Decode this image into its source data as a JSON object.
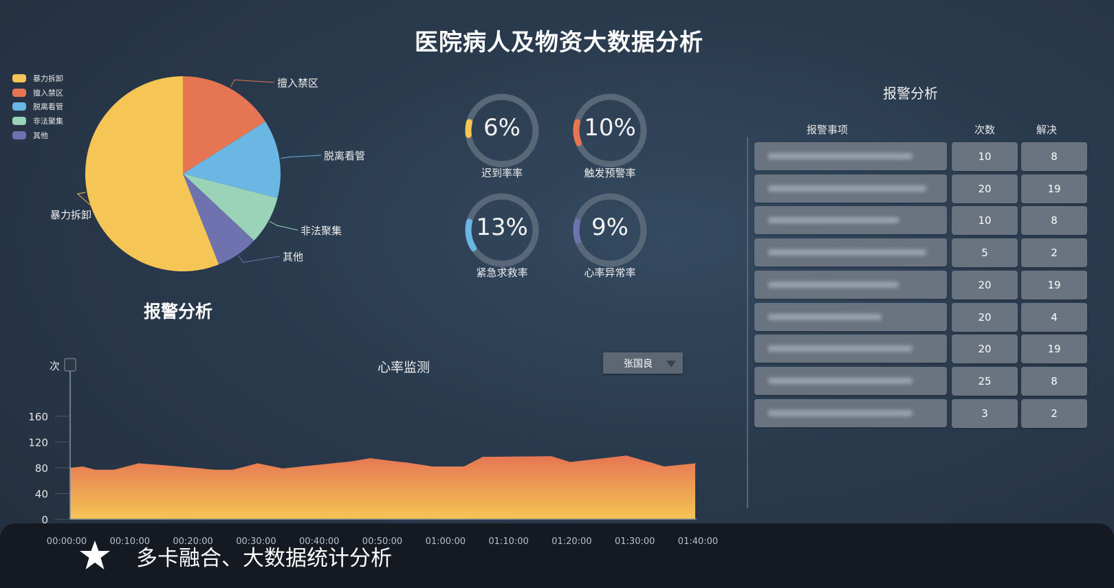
{
  "title": "医院病人及物资大数据分析",
  "pie": {
    "title": "报警分析",
    "legend": [
      "暴力拆卸",
      "擅入禁区",
      "脱离看管",
      "非法聚集",
      "其他"
    ],
    "slices": [
      {
        "name": "暴力拆卸",
        "value": 56,
        "color": "#f5c555"
      },
      {
        "name": "擅入禁区",
        "value": 16,
        "color": "#e57553"
      },
      {
        "name": "脱离看管",
        "value": 13,
        "color": "#6ab7e3"
      },
      {
        "name": "非法聚集",
        "value": 8,
        "color": "#9bd3b8"
      },
      {
        "name": "其他",
        "value": 7,
        "color": "#6e73b0"
      }
    ]
  },
  "gauges": [
    {
      "value": "6%",
      "percent": 6,
      "label": "迟到率率",
      "color": "#f5c555"
    },
    {
      "value": "10%",
      "percent": 10,
      "label": "触发预警率",
      "color": "#e57553"
    },
    {
      "value": "13%",
      "percent": 13,
      "label": "紧急求救率",
      "color": "#6ab7e3"
    },
    {
      "value": "9%",
      "percent": 9,
      "label": "心率异常率",
      "color": "#6e73b0"
    }
  ],
  "alarm_table": {
    "title": "报警分析",
    "headers": [
      "报警事项",
      "次数",
      "解决"
    ],
    "rows": [
      {
        "count": "10",
        "solved": "8"
      },
      {
        "count": "20",
        "solved": "19"
      },
      {
        "count": "10",
        "solved": "8"
      },
      {
        "count": "5",
        "solved": "2"
      },
      {
        "count": "20",
        "solved": "19"
      },
      {
        "count": "20",
        "solved": "4"
      },
      {
        "count": "20",
        "solved": "19"
      },
      {
        "count": "25",
        "solved": "8"
      },
      {
        "count": "3",
        "solved": "2"
      }
    ]
  },
  "heart_rate": {
    "title": "心率监测",
    "selected_person": "张国良",
    "chart_data": {
      "type": "area",
      "ylabel": "次",
      "yticks": [
        0,
        40,
        80,
        120,
        160
      ],
      "ylim": [
        0,
        200
      ],
      "xticks": [
        "00:00:00",
        "00:10:00",
        "00:20:00",
        "00:30:00",
        "00:40:00",
        "00:50:00",
        "01:00:00",
        "01:10:00",
        "01:20:00",
        "01:30:00",
        "01:40:00"
      ],
      "x": [
        "00:00:00",
        "00:02:00",
        "00:04:00",
        "00:07:00",
        "00:11:00",
        "00:15:00",
        "00:21:00",
        "00:23:00",
        "00:26:00",
        "00:30:00",
        "00:34:00",
        "00:38:00",
        "00:43:00",
        "00:45:00",
        "00:48:00",
        "00:52:00",
        "00:54:00",
        "00:58:00",
        "01:03:00",
        "01:06:00",
        "01:17:00",
        "01:20:00",
        "01:29:00",
        "01:33:00",
        "01:35:00",
        "01:40:00"
      ],
      "y": [
        80,
        82,
        77,
        77,
        87,
        84,
        79,
        77,
        77,
        87,
        79,
        83,
        88,
        90,
        95,
        90,
        88,
        82,
        82,
        97,
        98,
        89,
        99,
        88,
        82,
        87
      ],
      "colors": [
        "#e57553",
        "#f5c555"
      ]
    }
  },
  "banner": {
    "text": "多卡融合、大数据统计分析",
    "icon": "star-icon"
  }
}
